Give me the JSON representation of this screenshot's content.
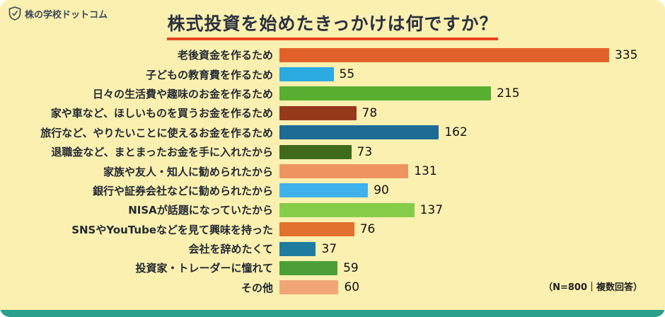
{
  "page": {
    "logo_text": "株の学校ドットコム",
    "title": "株式投資を始めたきっかけは何ですか？",
    "note": "（N=800｜複数回答）"
  },
  "colors": {
    "card_background": "#FBF0B0",
    "title_underline": "#E8441C",
    "text_dark": "#2A3240",
    "bottom_strip": "#2AA08A"
  },
  "chart_data": {
    "type": "bar",
    "orientation": "horizontal",
    "title": "株式投資を始めたきっかけは何ですか？",
    "note": "（N=800｜複数回答）",
    "xlim": [
      0,
      335
    ],
    "grid": false,
    "legend": "none",
    "categories": [
      "老後資金を作るため",
      "子どもの教育費を作るため",
      "日々の生活費や趣味のお金を作るため",
      "家や車など、ほしいものを買うお金を作るため",
      "旅行など、やりたいことに使えるお金を作るため",
      "退職金など、まとまったお金を手に入れたから",
      "家族や友人・知人に勧められたから",
      "銀行や証券会社などに勧められたから",
      "NISAが話題になっていたから",
      "SNSやYouTubeなどを見て興味を持った",
      "会社を辞めたくて",
      "投資家・トレーダーに憧れて",
      "その他"
    ],
    "values": [
      335,
      55,
      215,
      78,
      162,
      73,
      131,
      90,
      137,
      76,
      37,
      59,
      60
    ],
    "bar_colors": [
      "#E0622A",
      "#2BAAE2",
      "#58AE31",
      "#96391B",
      "#1E6B96",
      "#3F6A1C",
      "#EF9461",
      "#41B1ED",
      "#85CC49",
      "#E2702F",
      "#1F7C9E",
      "#4C9F38",
      "#F0A679"
    ]
  }
}
